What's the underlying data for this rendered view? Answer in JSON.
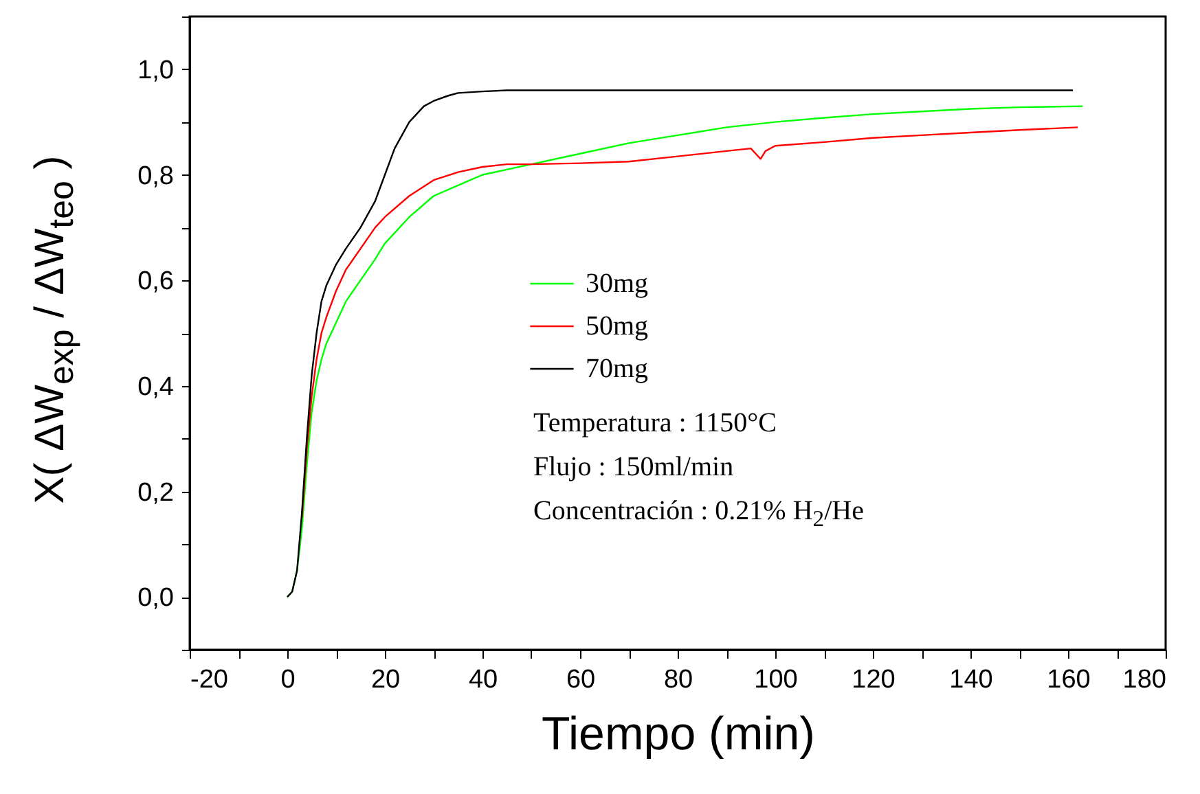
{
  "chart_data": {
    "type": "line",
    "xlabel": "Tiempo (min)",
    "ylabel": "X( ΔW$_{exp}$ / ΔW$_{teo}$ )",
    "xlim": [
      -20,
      180
    ],
    "ylim": [
      -0.1,
      1.1
    ],
    "xticks": [
      -20,
      {
        "value": -10,
        "label": null
      },
      0,
      {
        "value": 10,
        "label": null
      },
      20,
      {
        "value": 30,
        "label": null
      },
      40,
      {
        "value": 50,
        "label": null
      },
      60,
      {
        "value": 70,
        "label": null
      },
      80,
      {
        "value": 90,
        "label": null
      },
      100,
      {
        "value": 110,
        "label": null
      },
      120,
      {
        "value": 130,
        "label": null
      },
      140,
      {
        "value": 150,
        "label": null
      },
      160,
      {
        "value": 170,
        "label": null
      },
      180
    ],
    "yticks": [
      {
        "value": -0.1,
        "label": null
      },
      {
        "value": 0,
        "label": "0,0"
      },
      {
        "value": 0.1,
        "label": null
      },
      {
        "value": 0.2,
        "label": "0,2"
      },
      {
        "value": 0.3,
        "label": null
      },
      {
        "value": 0.4,
        "label": "0,4"
      },
      {
        "value": 0.5,
        "label": null
      },
      {
        "value": 0.6,
        "label": "0,6"
      },
      {
        "value": 0.7,
        "label": null
      },
      {
        "value": 0.8,
        "label": "0,8"
      },
      {
        "value": 0.9,
        "label": null
      },
      {
        "value": 1,
        "label": "1,0"
      },
      {
        "value": 1.1,
        "label": null
      }
    ],
    "grid": false,
    "legend": "left",
    "marker": "none",
    "line_style": "solid",
    "series": [
      {
        "name": "30mg",
        "color": "#00ff00",
        "x": [
          0,
          1,
          2,
          3,
          4,
          5,
          6,
          7,
          8,
          10,
          12,
          15,
          18,
          20,
          25,
          30,
          35,
          40,
          45,
          50,
          60,
          70,
          80,
          90,
          100,
          110,
          120,
          130,
          140,
          150,
          163
        ],
        "values": [
          0,
          0.01,
          0.05,
          0.13,
          0.25,
          0.35,
          0.41,
          0.45,
          0.48,
          0.52,
          0.56,
          0.6,
          0.64,
          0.67,
          0.72,
          0.76,
          0.78,
          0.8,
          0.81,
          0.82,
          0.84,
          0.86,
          0.875,
          0.89,
          0.9,
          0.908,
          0.915,
          0.92,
          0.925,
          0.928,
          0.93
        ]
      },
      {
        "name": "50mg",
        "color": "#ff0000",
        "x": [
          3,
          4,
          5,
          6,
          7,
          8,
          10,
          12,
          15,
          18,
          20,
          25,
          30,
          35,
          40,
          45,
          50,
          60,
          70,
          80,
          90,
          95,
          97,
          98,
          100,
          110,
          120,
          130,
          140,
          150,
          162
        ],
        "values": [
          0.15,
          0.28,
          0.38,
          0.45,
          0.5,
          0.53,
          0.58,
          0.62,
          0.66,
          0.7,
          0.72,
          0.76,
          0.79,
          0.805,
          0.815,
          0.82,
          0.82,
          0.822,
          0.825,
          0.835,
          0.845,
          0.85,
          0.83,
          0.845,
          0.855,
          0.862,
          0.87,
          0.875,
          0.88,
          0.885,
          0.89
        ]
      },
      {
        "name": "70mg",
        "color": "#000000",
        "x": [
          0,
          1,
          2,
          3,
          4,
          5,
          6,
          7,
          8,
          10,
          12,
          15,
          18,
          20,
          22,
          25,
          28,
          30,
          33,
          35,
          40,
          45,
          50,
          60,
          80,
          100,
          120,
          140,
          161
        ],
        "values": [
          0,
          0.01,
          0.05,
          0.16,
          0.3,
          0.42,
          0.5,
          0.56,
          0.59,
          0.63,
          0.66,
          0.7,
          0.75,
          0.8,
          0.85,
          0.9,
          0.93,
          0.94,
          0.95,
          0.955,
          0.958,
          0.96,
          0.96,
          0.96,
          0.96,
          0.96,
          0.96,
          0.96,
          0.96
        ]
      }
    ],
    "annotations": [
      "Temperatura : 1150°C",
      "Flujo : 150ml/min",
      "Concentración : 0.21% H$_{2}$/He"
    ]
  }
}
